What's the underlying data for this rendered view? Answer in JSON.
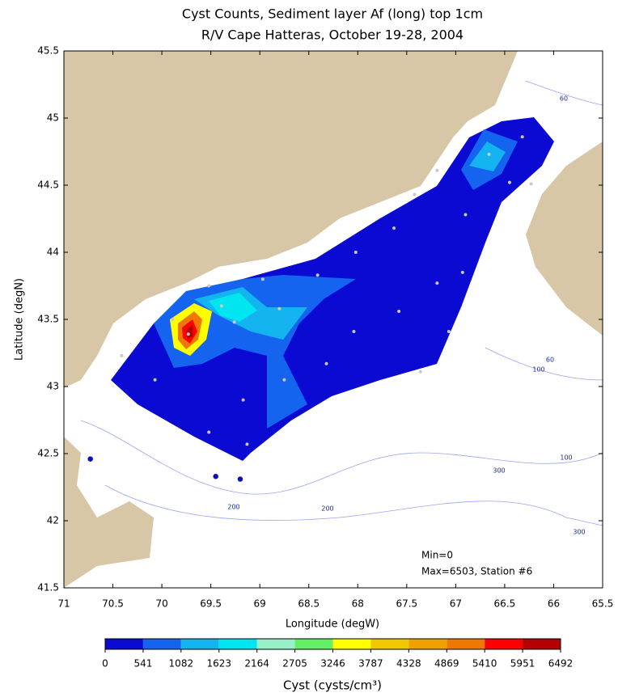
{
  "chart_data": {
    "type": "map",
    "title_lines": [
      "Cyst Counts, Sediment layer Af (long) top 1cm",
      "R/V Cape Hatteras, October 19-28, 2004"
    ],
    "x_label": "Longitude (degW)",
    "y_label": "Latitude (degN)",
    "xlim": [
      71,
      65.5
    ],
    "ylim": [
      41.5,
      45.5
    ],
    "xticks": [
      71,
      70.5,
      70,
      69.5,
      69,
      68.5,
      68,
      67.5,
      67,
      66.5,
      66,
      65.5
    ],
    "yticks": [
      41.5,
      42,
      42.5,
      43,
      43.5,
      44,
      44.5,
      45,
      45.5
    ],
    "stations": {
      "lon": [
        69.73,
        69.89,
        69.39,
        69.26,
        69.52,
        68.97,
        68.8,
        68.41,
        68.02,
        67.63,
        67.42,
        67.19,
        66.66,
        66.32,
        66.23,
        66.45,
        66.9,
        66.93,
        67.19,
        67.58,
        68.04,
        68.32,
        68.75,
        69.17,
        69.52,
        69.13,
        70.07,
        70.41,
        67.36,
        67.07
      ],
      "lat": [
        43.39,
        43.5,
        43.6,
        43.48,
        43.75,
        43.8,
        43.58,
        43.83,
        44.0,
        44.18,
        44.43,
        44.61,
        44.73,
        44.86,
        44.51,
        44.52,
        44.28,
        43.85,
        43.77,
        43.56,
        43.41,
        43.17,
        43.05,
        42.9,
        42.66,
        42.57,
        43.05,
        43.23,
        43.11,
        43.41
      ]
    },
    "outer_stations": {
      "lon": [
        70.73,
        69.45,
        69.2
      ],
      "lat": [
        42.46,
        42.33,
        42.31
      ]
    },
    "contour_labels": [
      60,
      60,
      100,
      100,
      300,
      300,
      200,
      200
    ],
    "min_label": "Min=0",
    "max_label": "Max=6503, Station #6",
    "colorbar": {
      "label": "Cyst (cysts/cm³)",
      "ticks": [
        0,
        541,
        1082,
        1623,
        2164,
        2705,
        3246,
        3787,
        4328,
        4869,
        5410,
        5951,
        6492
      ],
      "colors": [
        "#0a0ad2",
        "#1464f0",
        "#14b4f0",
        "#00e6f0",
        "#96f0c8",
        "#64f064",
        "#ffff00",
        "#f0c800",
        "#f0a000",
        "#f07800",
        "#ff0000",
        "#b40000"
      ]
    }
  }
}
